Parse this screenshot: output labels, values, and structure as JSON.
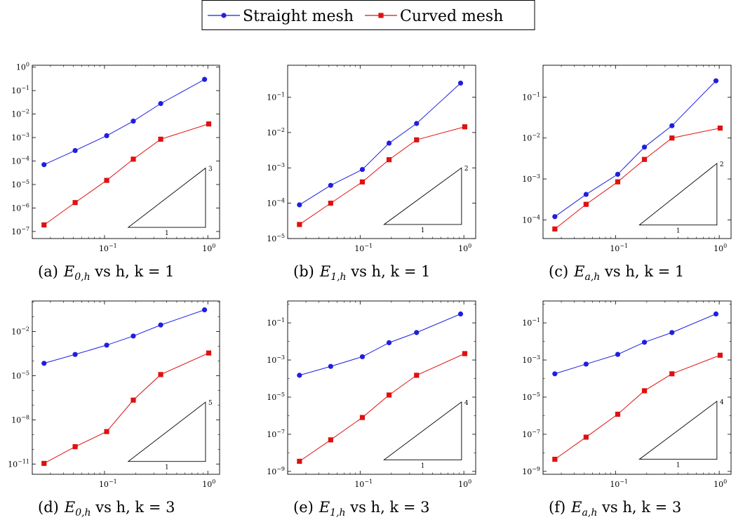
{
  "legend": {
    "items": [
      {
        "label": "Straight mesh",
        "color": "#1f1fe0",
        "marker": "circle"
      },
      {
        "label": "Curved mesh",
        "color": "#e01010",
        "marker": "square"
      }
    ],
    "placement": "top-center"
  },
  "colors": {
    "straight": "#1f1fe0",
    "curved": "#e01010",
    "axis": "#000000",
    "tick": "#000000"
  },
  "chart_data": [
    {
      "type": "line",
      "xscale": "log",
      "yscale": "log",
      "caption": {
        "tag": "(a)",
        "sym": "E",
        "sub": "0,h",
        "rest": " vs h, k = 1"
      },
      "xlim": [
        0.02,
        1.3
      ],
      "ylim": [
        5e-08,
        1.2
      ],
      "xticks": [
        {
          "v": 0.1,
          "label": "10",
          "exp": "−1"
        },
        {
          "v": 1,
          "label": "10",
          "exp": "0"
        }
      ],
      "yticks": [
        {
          "v": 1e-07,
          "label": "10",
          "exp": "−7"
        },
        {
          "v": 1e-06,
          "label": "10",
          "exp": "−6"
        },
        {
          "v": 1e-05,
          "label": "10",
          "exp": "−5"
        },
        {
          "v": 0.0001,
          "label": "10",
          "exp": "−4"
        },
        {
          "v": 0.001,
          "label": "10",
          "exp": "−3"
        },
        {
          "v": 0.01,
          "label": "10",
          "exp": "−2"
        },
        {
          "v": 0.1,
          "label": "10",
          "exp": "−1"
        },
        {
          "v": 1,
          "label": "10",
          "exp": "0"
        }
      ],
      "series": [
        {
          "name": "Straight mesh",
          "x": [
            0.026,
            0.052,
            0.105,
            0.19,
            0.35,
            0.93
          ],
          "y": [
            7e-05,
            0.00028,
            0.0012,
            0.005,
            0.028,
            0.3
          ]
        },
        {
          "name": "Curved mesh",
          "x": [
            0.026,
            0.052,
            0.105,
            0.19,
            0.35,
            1.02
          ],
          "y": [
            1.9e-07,
            1.7e-06,
            1.5e-05,
            0.00012,
            0.00085,
            0.0038
          ]
        }
      ],
      "triangle": {
        "x1": 0.17,
        "x2": 0.95,
        "y1": 1.5e-07,
        "y2": 5e-05,
        "slope_label": "3",
        "run_label": "1"
      }
    },
    {
      "type": "line",
      "xscale": "log",
      "yscale": "log",
      "caption": {
        "tag": "(b)",
        "sym": "E",
        "sub": "1,h",
        "rest": " vs h, k = 1"
      },
      "xlim": [
        0.02,
        1.3
      ],
      "ylim": [
        1e-05,
        0.8
      ],
      "xticks": [
        {
          "v": 0.1,
          "label": "10",
          "exp": "−1"
        },
        {
          "v": 1,
          "label": "10",
          "exp": "0"
        }
      ],
      "yticks": [
        {
          "v": 1e-05,
          "label": "10",
          "exp": "−5"
        },
        {
          "v": 0.0001,
          "label": "10",
          "exp": "−4"
        },
        {
          "v": 0.001,
          "label": "10",
          "exp": "−3"
        },
        {
          "v": 0.01,
          "label": "10",
          "exp": "−2"
        },
        {
          "v": 0.1,
          "label": "10",
          "exp": "−1"
        }
      ],
      "series": [
        {
          "name": "Straight mesh",
          "x": [
            0.026,
            0.052,
            0.105,
            0.19,
            0.35,
            0.93
          ],
          "y": [
            9e-05,
            0.00032,
            0.0009,
            0.005,
            0.018,
            0.25
          ]
        },
        {
          "name": "Curved mesh",
          "x": [
            0.026,
            0.052,
            0.105,
            0.19,
            0.35,
            1.02
          ],
          "y": [
            2.5e-05,
            0.0001,
            0.0004,
            0.0017,
            0.0062,
            0.0145
          ]
        }
      ],
      "triangle": {
        "x1": 0.17,
        "x2": 0.95,
        "y1": 2.5e-05,
        "y2": 0.001,
        "slope_label": "2",
        "run_label": "1"
      }
    },
    {
      "type": "line",
      "xscale": "log",
      "yscale": "log",
      "caption": {
        "tag": "(c)",
        "sym": "E",
        "sub": "a,h",
        "rest": " vs h, k = 1"
      },
      "xlim": [
        0.02,
        1.3
      ],
      "ylim": [
        3.5e-05,
        0.6
      ],
      "xticks": [
        {
          "v": 0.1,
          "label": "10",
          "exp": "−1"
        },
        {
          "v": 1,
          "label": "10",
          "exp": "0"
        }
      ],
      "yticks": [
        {
          "v": 0.0001,
          "label": "10",
          "exp": "−4"
        },
        {
          "v": 0.001,
          "label": "10",
          "exp": "−3"
        },
        {
          "v": 0.01,
          "label": "10",
          "exp": "−2"
        },
        {
          "v": 0.1,
          "label": "10",
          "exp": "−1"
        }
      ],
      "series": [
        {
          "name": "Straight mesh",
          "x": [
            0.026,
            0.052,
            0.105,
            0.19,
            0.35,
            0.93
          ],
          "y": [
            0.00012,
            0.00042,
            0.0013,
            0.006,
            0.02,
            0.25
          ]
        },
        {
          "name": "Curved mesh",
          "x": [
            0.026,
            0.052,
            0.105,
            0.19,
            0.35,
            1.02
          ],
          "y": [
            6e-05,
            0.00024,
            0.00085,
            0.003,
            0.01,
            0.0175
          ]
        }
      ],
      "triangle": {
        "x1": 0.17,
        "x2": 0.95,
        "y1": 7.5e-05,
        "y2": 0.0024,
        "slope_label": "2",
        "run_label": "1"
      }
    },
    {
      "type": "line",
      "xscale": "log",
      "yscale": "log",
      "caption": {
        "tag": "(d)",
        "sym": "E",
        "sub": "0,h",
        "rest": " vs h, k = 3"
      },
      "xlim": [
        0.02,
        1.3
      ],
      "ylim": [
        2e-12,
        1.2
      ],
      "xticks": [
        {
          "v": 0.1,
          "label": "10",
          "exp": "−1"
        },
        {
          "v": 1,
          "label": "10",
          "exp": "0"
        }
      ],
      "yticks": [
        {
          "v": 1e-11,
          "label": "10",
          "exp": "−11"
        },
        {
          "v": 1e-08,
          "label": "10",
          "exp": "−8"
        },
        {
          "v": 1e-05,
          "label": "10",
          "exp": "−5"
        },
        {
          "v": 0.01,
          "label": "10",
          "exp": "−2"
        }
      ],
      "series": [
        {
          "name": "Straight mesh",
          "x": [
            0.026,
            0.052,
            0.105,
            0.19,
            0.35,
            0.93
          ],
          "y": [
            7e-05,
            0.00028,
            0.0012,
            0.005,
            0.028,
            0.3
          ]
        },
        {
          "name": "Curved mesh",
          "x": [
            0.026,
            0.052,
            0.105,
            0.19,
            0.35,
            1.02
          ],
          "y": [
            1.1e-11,
            1.5e-10,
            1.6e-09,
            2.2e-07,
            1.2e-05,
            0.00035
          ]
        }
      ],
      "triangle": {
        "x1": 0.17,
        "x2": 0.95,
        "y1": 1.5e-11,
        "y2": 1.6e-07,
        "slope_label": "5",
        "run_label": "1"
      }
    },
    {
      "type": "line",
      "xscale": "log",
      "yscale": "log",
      "caption": {
        "tag": "(e)",
        "sym": "E",
        "sub": "1,h",
        "rest": " vs h, k = 3"
      },
      "xlim": [
        0.02,
        1.3
      ],
      "ylim": [
        7e-10,
        1.5
      ],
      "xticks": [
        {
          "v": 0.1,
          "label": "10",
          "exp": "−1"
        },
        {
          "v": 1,
          "label": "10",
          "exp": "0"
        }
      ],
      "yticks": [
        {
          "v": 1e-09,
          "label": "10",
          "exp": "−9"
        },
        {
          "v": 1e-07,
          "label": "10",
          "exp": "−7"
        },
        {
          "v": 1e-05,
          "label": "10",
          "exp": "−5"
        },
        {
          "v": 0.001,
          "label": "10",
          "exp": "−3"
        },
        {
          "v": 0.1,
          "label": "10",
          "exp": "−1"
        }
      ],
      "series": [
        {
          "name": "Straight mesh",
          "x": [
            0.026,
            0.052,
            0.105,
            0.19,
            0.35,
            0.93
          ],
          "y": [
            0.00015,
            0.00045,
            0.0015,
            0.0085,
            0.03,
            0.3
          ]
        },
        {
          "name": "Curved mesh",
          "x": [
            0.026,
            0.052,
            0.105,
            0.19,
            0.35,
            1.02
          ],
          "y": [
            3.5e-09,
            5e-08,
            8e-07,
            1.3e-05,
            0.00015,
            0.0022
          ]
        }
      ],
      "triangle": {
        "x1": 0.17,
        "x2": 0.95,
        "y1": 4.2e-09,
        "y2": 5.5e-06,
        "slope_label": "4",
        "run_label": "1"
      }
    },
    {
      "type": "line",
      "xscale": "log",
      "yscale": "log",
      "caption": {
        "tag": "(f)",
        "sym": "E",
        "sub": "a,h",
        "rest": " vs h, k = 3"
      },
      "xlim": [
        0.02,
        1.3
      ],
      "ylim": [
        7e-10,
        1.5
      ],
      "xticks": [
        {
          "v": 0.1,
          "label": "10",
          "exp": "−1"
        },
        {
          "v": 1,
          "label": "10",
          "exp": "0"
        }
      ],
      "yticks": [
        {
          "v": 1e-09,
          "label": "10",
          "exp": "−9"
        },
        {
          "v": 1e-07,
          "label": "10",
          "exp": "−7"
        },
        {
          "v": 1e-05,
          "label": "10",
          "exp": "−5"
        },
        {
          "v": 0.001,
          "label": "10",
          "exp": "−3"
        },
        {
          "v": 0.1,
          "label": "10",
          "exp": "−1"
        }
      ],
      "series": [
        {
          "name": "Straight mesh",
          "x": [
            0.026,
            0.052,
            0.105,
            0.19,
            0.35,
            0.93
          ],
          "y": [
            0.00018,
            0.0006,
            0.002,
            0.009,
            0.03,
            0.3
          ]
        },
        {
          "name": "Curved mesh",
          "x": [
            0.026,
            0.052,
            0.105,
            0.19,
            0.35,
            1.02
          ],
          "y": [
            4.5e-09,
            7e-08,
            1.2e-06,
            2.2e-05,
            0.00018,
            0.0018
          ]
        }
      ],
      "triangle": {
        "x1": 0.17,
        "x2": 0.95,
        "y1": 4.5e-09,
        "y2": 6e-06,
        "slope_label": "4",
        "run_label": "1"
      }
    }
  ]
}
